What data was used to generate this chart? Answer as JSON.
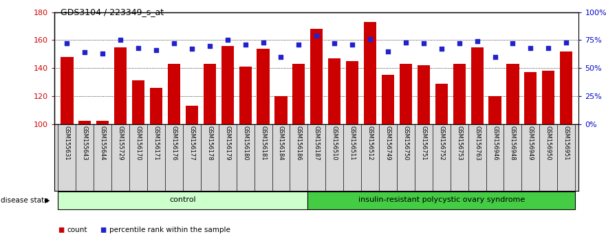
{
  "title": "GDS3104 / 223349_s_at",
  "samples": [
    "GSM155631",
    "GSM155643",
    "GSM155644",
    "GSM155729",
    "GSM156170",
    "GSM156171",
    "GSM156176",
    "GSM156177",
    "GSM156178",
    "GSM156179",
    "GSM156180",
    "GSM156181",
    "GSM156184",
    "GSM156186",
    "GSM156187",
    "GSM156510",
    "GSM156511",
    "GSM156512",
    "GSM156749",
    "GSM156750",
    "GSM156751",
    "GSM156752",
    "GSM156753",
    "GSM156763",
    "GSM156946",
    "GSM156948",
    "GSM156949",
    "GSM156950",
    "GSM156951"
  ],
  "counts": [
    148,
    102,
    102,
    155,
    131,
    126,
    143,
    113,
    143,
    156,
    141,
    154,
    120,
    143,
    168,
    147,
    145,
    173,
    135,
    143,
    142,
    129,
    143,
    155,
    120,
    143,
    137,
    138,
    152
  ],
  "percentiles": [
    72,
    64,
    63,
    75,
    68,
    66,
    72,
    67,
    70,
    75,
    71,
    73,
    60,
    71,
    79,
    72,
    71,
    76,
    65,
    73,
    72,
    67,
    72,
    74,
    60,
    72,
    68,
    68,
    73
  ],
  "n_control": 14,
  "control_label": "control",
  "disease_label": "insulin-resistant polycystic ovary syndrome",
  "ylim": [
    100,
    180
  ],
  "yticks": [
    100,
    120,
    140,
    160,
    180
  ],
  "right_yticks_vals": [
    0,
    25,
    50,
    75,
    100
  ],
  "right_yticks_labels": [
    "0%",
    "25%",
    "50%",
    "75%",
    "100%"
  ],
  "bar_color": "#cc0000",
  "dot_color": "#2222cc",
  "control_bg": "#ccffcc",
  "disease_bg": "#44cc44",
  "label_bg": "#d8d8d8",
  "left_tick_color": "#cc0000",
  "right_tick_color": "#0000cc",
  "bar_width": 0.7,
  "n_samples": 29
}
